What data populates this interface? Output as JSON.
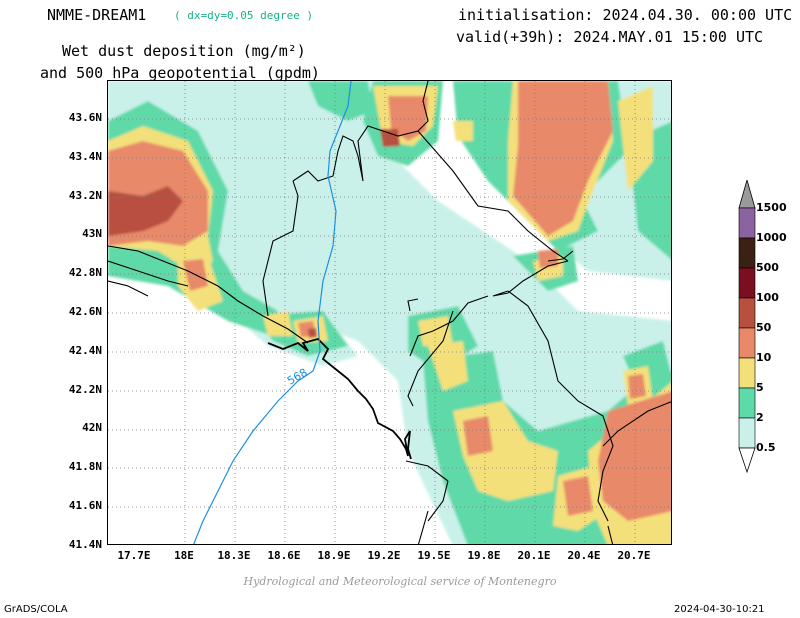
{
  "header": {
    "model_name": "NMME-DREAM1",
    "model_resolution": "( dx=dy=0.05 degree )",
    "initialisation": "initialisation: 2024.04.30. 00:00 UTC",
    "valid": "valid(+39h): 2024.MAY.01 15:00 UTC",
    "title_line1": "Wet dust deposition (mg/m²)",
    "title_line2": "and 500 hPa geopotential (gpdm)"
  },
  "map": {
    "lat_labels": [
      "43.6N",
      "43.4N",
      "43.2N",
      "43N",
      "42.8N",
      "42.6N",
      "42.4N",
      "42.2N",
      "42N",
      "41.8N",
      "41.6N",
      "41.4N"
    ],
    "lon_labels": [
      "17.7E",
      "18E",
      "18.3E",
      "18.6E",
      "18.9E",
      "19.2E",
      "19.5E",
      "19.8E",
      "20.1E",
      "20.4E",
      "20.7E"
    ],
    "lat_range": [
      41.4,
      43.8
    ],
    "lon_range": [
      17.55,
      20.95
    ],
    "grid": true,
    "geopotential_contour_label": "568",
    "geopotential_contour_color": "#1e8fe0",
    "border_color": "#000000"
  },
  "colorbar": {
    "levels": [
      "0.5",
      "2",
      "5",
      "10",
      "50",
      "100",
      "500",
      "1000",
      "1500"
    ],
    "colors": [
      "#c9f1ea",
      "#5ed9a8",
      "#f4e07a",
      "#e8896a",
      "#b85040",
      "#7b0f22",
      "#3b2113",
      "#8b63a1",
      "#9a9a9a"
    ]
  },
  "credit": "Hydrological and Meteorological service of Montenegro",
  "footer": {
    "left": "GrADS/COLA",
    "right": "2024-04-30-10:21"
  }
}
